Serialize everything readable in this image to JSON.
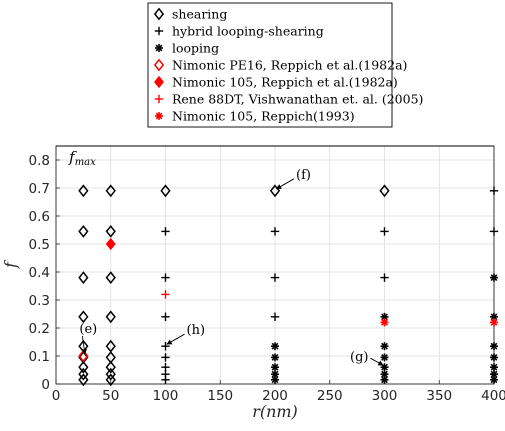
{
  "chart_data": {
    "type": "scatter",
    "xlabel": "r(nm)",
    "ylabel": "f",
    "xlim": [
      0,
      400
    ],
    "ylim": [
      0,
      0.85
    ],
    "x_ticks": [
      0,
      50,
      100,
      150,
      200,
      250,
      300,
      350,
      400
    ],
    "y_ticks": [
      0,
      0.1,
      0.2,
      0.3,
      0.4,
      0.5,
      0.6,
      0.7,
      0.8
    ],
    "grid": true,
    "legend_position": "top, outside plot",
    "hline": {
      "label": "f",
      "label_sub": "max",
      "y": 0.85
    },
    "series": [
      {
        "name": "shearing",
        "marker": "diamond-open",
        "color": "#000000",
        "points": [
          [
            25,
            0.69
          ],
          [
            50,
            0.69
          ],
          [
            100,
            0.69
          ],
          [
            200,
            0.69
          ],
          [
            300,
            0.69
          ],
          [
            25,
            0.545
          ],
          [
            50,
            0.545
          ],
          [
            25,
            0.38
          ],
          [
            50,
            0.38
          ],
          [
            25,
            0.24
          ],
          [
            50,
            0.24
          ],
          [
            25,
            0.135
          ],
          [
            50,
            0.135
          ],
          [
            25,
            0.095
          ],
          [
            50,
            0.095
          ],
          [
            25,
            0.06
          ],
          [
            50,
            0.06
          ],
          [
            25,
            0.035
          ],
          [
            50,
            0.035
          ],
          [
            25,
            0.015
          ],
          [
            50,
            0.015
          ]
        ]
      },
      {
        "name": "hybrid looping-shearing",
        "marker": "plus",
        "color": "#000000",
        "points": [
          [
            100,
            0.545
          ],
          [
            200,
            0.545
          ],
          [
            300,
            0.545
          ],
          [
            400,
            0.545
          ],
          [
            400,
            0.69
          ],
          [
            100,
            0.38
          ],
          [
            200,
            0.38
          ],
          [
            300,
            0.38
          ],
          [
            100,
            0.24
          ],
          [
            200,
            0.24
          ],
          [
            100,
            0.135
          ],
          [
            100,
            0.095
          ],
          [
            100,
            0.06
          ],
          [
            100,
            0.035
          ],
          [
            100,
            0.015
          ]
        ]
      },
      {
        "name": "looping",
        "marker": "asterisk",
        "color": "#000000",
        "points": [
          [
            200,
            0.135
          ],
          [
            200,
            0.095
          ],
          [
            200,
            0.06
          ],
          [
            200,
            0.035
          ],
          [
            200,
            0.015
          ],
          [
            300,
            0.24
          ],
          [
            300,
            0.135
          ],
          [
            300,
            0.095
          ],
          [
            300,
            0.06
          ],
          [
            300,
            0.035
          ],
          [
            300,
            0.015
          ],
          [
            400,
            0.38
          ],
          [
            400,
            0.24
          ],
          [
            400,
            0.135
          ],
          [
            400,
            0.095
          ],
          [
            400,
            0.06
          ],
          [
            400,
            0.035
          ],
          [
            400,
            0.015
          ]
        ]
      },
      {
        "name": "Nimonic PE16, Reppich et al.(1982a)",
        "marker": "diamond-open",
        "color": "#ff0000",
        "points": [
          [
            25,
            0.1
          ]
        ]
      },
      {
        "name": "Nimonic 105, Reppich et al.(1982a)",
        "marker": "diamond-filled",
        "color": "#ff0000",
        "points": [
          [
            50,
            0.5
          ]
        ]
      },
      {
        "name": "Rene 88DT, Vishwanathan et. al. (2005)",
        "marker": "plus",
        "color": "#ff0000",
        "points": [
          [
            100,
            0.32
          ]
        ]
      },
      {
        "name": "Nimonic 105, Reppich(1993)",
        "marker": "asterisk",
        "color": "#ff0000",
        "points": [
          [
            300,
            0.22
          ],
          [
            400,
            0.22
          ]
        ]
      }
    ],
    "annotations": [
      {
        "text": "(f)",
        "point": [
          200,
          0.69
        ],
        "side": "right"
      },
      {
        "text": "(e)",
        "point": [
          25,
          0.1
        ],
        "side": "above"
      },
      {
        "text": "(h)",
        "point": [
          100,
          0.135
        ],
        "side": "right"
      },
      {
        "text": "(g)",
        "point": [
          300,
          0.06
        ],
        "side": "left"
      }
    ]
  }
}
